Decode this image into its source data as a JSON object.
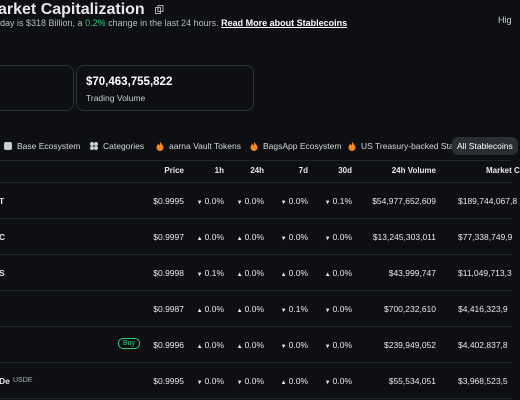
{
  "header": {
    "title": "arket Capitalization",
    "subtitle_pre": "day is $318 Billion, a ",
    "subtitle_change": "0.2%",
    "subtitle_post": " change in the last 24 hours. ",
    "read_more": "Read More about Stablecoins",
    "right_cut": "Hig"
  },
  "cards": [
    {
      "value": "",
      "label": ""
    },
    {
      "value": "$70,463,755,822",
      "label": "Trading Volume"
    }
  ],
  "tabs": [
    {
      "label": "Base Ecosystem",
      "icon": "square"
    },
    {
      "label": "Categories",
      "icon": "grid"
    },
    {
      "label": "aarna Vault Tokens",
      "icon": "fire"
    },
    {
      "label": "BagsApp Ecosystem",
      "icon": "fire"
    },
    {
      "label": "US Treasury-backed Sta",
      "icon": "fire"
    },
    {
      "label": "All Stablecoins",
      "icon": "none",
      "selected": true
    }
  ],
  "table": {
    "headers": [
      "Price",
      "1h",
      "24h",
      "7d",
      "30d",
      "24h Volume",
      "Market C"
    ],
    "rows": [
      {
        "name": "T",
        "symbol": "",
        "price": "$0.9995",
        "changes": [
          {
            "text": "0.0%",
            "dir": "down"
          },
          {
            "text": "0.0%",
            "dir": "down"
          },
          {
            "text": "0.0%",
            "dir": "down"
          },
          {
            "text": "0.1%",
            "dir": "down"
          }
        ],
        "volume": "$54,977,652,609",
        "mcap": "$189,744,067,8"
      },
      {
        "name": "C",
        "symbol": "",
        "price": "$0.9997",
        "changes": [
          {
            "text": "0.0%",
            "dir": "up"
          },
          {
            "text": "0.0%",
            "dir": "up"
          },
          {
            "text": "0.0%",
            "dir": "down"
          },
          {
            "text": "0.0%",
            "dir": "down"
          }
        ],
        "volume": "$13,245,303,011",
        "mcap": "$77,338,749,9"
      },
      {
        "name": "S",
        "symbol": "",
        "price": "$0.9998",
        "changes": [
          {
            "text": "0.1%",
            "dir": "down"
          },
          {
            "text": "0.0%",
            "dir": "up"
          },
          {
            "text": "0.0%",
            "dir": "up"
          },
          {
            "text": "0.0%",
            "dir": "up"
          }
        ],
        "volume": "$43,999,747",
        "mcap": "$11,049,713,3"
      },
      {
        "name": "",
        "symbol": "",
        "price": "$0.9987",
        "changes": [
          {
            "text": "0.0%",
            "dir": "up"
          },
          {
            "text": "0.0%",
            "dir": "up"
          },
          {
            "text": "0.1%",
            "dir": "down"
          },
          {
            "text": "0.0%",
            "dir": "down"
          }
        ],
        "volume": "$700,232,610",
        "mcap": "$4,416,323,9"
      },
      {
        "name": "",
        "symbol": "",
        "button": "Buy",
        "price": "$0.9996",
        "changes": [
          {
            "text": "0.0%",
            "dir": "up"
          },
          {
            "text": "0.0%",
            "dir": "up"
          },
          {
            "text": "0.0%",
            "dir": "down"
          },
          {
            "text": "0.0%",
            "dir": "down"
          }
        ],
        "volume": "$239,949,052",
        "mcap": "$4,402,837,8"
      },
      {
        "name": "De",
        "symbol": "USDE",
        "price": "$0.9995",
        "changes": [
          {
            "text": "0.0%",
            "dir": "down"
          },
          {
            "text": "0.0%",
            "dir": "down"
          },
          {
            "text": "0.0%",
            "dir": "up"
          },
          {
            "text": "0.0%",
            "dir": "down"
          }
        ],
        "volume": "$55,534,051",
        "mcap": "$3,968,523,5"
      }
    ]
  }
}
